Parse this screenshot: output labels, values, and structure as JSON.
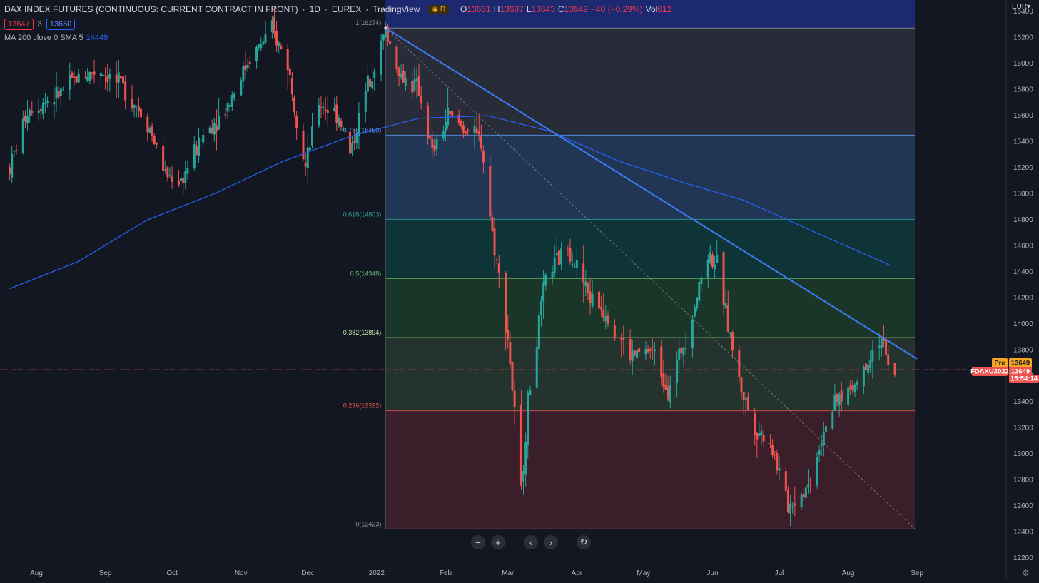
{
  "header": {
    "symbol_title": "DAX INDEX FUTURES (CONTINUOUS: CURRENT CONTRACT IN FRONT)",
    "interval": "1D",
    "exchange": "EUREX",
    "source": "TradingView",
    "session_badge": "D",
    "open_label": "O",
    "open": "13661",
    "high_label": "H",
    "high": "13687",
    "low_label": "L",
    "low": "13643",
    "close_label": "C",
    "close": "13649",
    "change": "−40 (−0.29%)",
    "vol_label": "Vol",
    "vol": "612",
    "sell_price": "13647",
    "spread": "3",
    "buy_price": "13650",
    "ma_label": "MA 200 close 0 SMA 5",
    "ma_value": "14449"
  },
  "currency": "EUR",
  "controls": {
    "zoom_out": "−",
    "zoom_in": "+",
    "scroll_left": "‹",
    "scroll_right": "›",
    "reset": "↻"
  },
  "price_tags": {
    "pre_label": "Pre",
    "pre_price": "13649",
    "symbol_code": "FDAXU2022",
    "last_price": "13649",
    "countdown": "15:54:14"
  },
  "colors": {
    "background": "#131722",
    "up": "#26a69a",
    "down": "#ef5350",
    "ma": "#2962ff",
    "trendline": "#3d7cf5"
  },
  "chart_data": {
    "type": "candlestick",
    "y_axis": {
      "ticks": [
        12200,
        12400,
        12600,
        12800,
        13000,
        13200,
        13400,
        13600,
        13800,
        14000,
        14200,
        14400,
        14600,
        14800,
        15000,
        15200,
        15400,
        15600,
        15800,
        16000,
        16200,
        16400
      ],
      "range": [
        12200,
        16450
      ]
    },
    "x_axis": {
      "labels": [
        "Aug",
        "Sep",
        "Oct",
        "Nov",
        "Dec",
        "2022",
        "Feb",
        "Mar",
        "Apr",
        "May",
        "Jun",
        "Jul",
        "Aug",
        "Sep"
      ],
      "dates": [
        "2021-08-01",
        "2021-09-01",
        "2021-10-01",
        "2021-11-01",
        "2021-12-01",
        "2022-01-01",
        "2022-02-01",
        "2022-03-01",
        "2022-04-01",
        "2022-05-01",
        "2022-06-01",
        "2022-07-01",
        "2022-08-01",
        "2022-09-01"
      ]
    },
    "fibonacci": [
      {
        "level": "1",
        "price": 16274,
        "label": "1(16274)",
        "label_color": "#9598a1",
        "fill": "#2a2f3b"
      },
      {
        "level": "0.786",
        "price": 15450,
        "label": "0.786(15450)",
        "label_color": "#5b9cf6",
        "fill": "#243a5a"
      },
      {
        "level": "0.618",
        "price": 14803,
        "label": "0.618(14803)",
        "label_color": "#26a69a",
        "fill": "#10373a"
      },
      {
        "level": "0.5",
        "price": 14348,
        "label": "0.5(14348)",
        "label_color": "#66bb6a",
        "fill": "#1c3a2a"
      },
      {
        "level": "0.382",
        "price": 13894,
        "label": "0.382(13894)",
        "label_color": "#c0e5a0",
        "fill": "#27362f"
      },
      {
        "level": "0.236",
        "price": 13332,
        "label": "0.236(13332)",
        "label_color": "#ef5350",
        "fill": "#3f1f2a"
      },
      {
        "level": "0",
        "price": 12423,
        "label": "0(12423)",
        "label_color": "#9598a1",
        "fill": null
      }
    ],
    "fib_range": {
      "start": "2022-01-05",
      "end": "2022-08-31"
    },
    "trendline": {
      "from": {
        "date": "2022-01-05",
        "price": 16274
      },
      "to": {
        "date": "2022-09-01",
        "price": 13730
      }
    },
    "fib_diagonal": {
      "from": {
        "date": "2022-01-05",
        "price": 16274
      },
      "to": {
        "date": "2022-08-31",
        "price": 12423
      }
    },
    "ma200": [
      {
        "date": "2021-07-20",
        "value": 14270
      },
      {
        "date": "2021-08-20",
        "value": 14480
      },
      {
        "date": "2021-09-20",
        "value": 14800
      },
      {
        "date": "2021-10-20",
        "value": 15000
      },
      {
        "date": "2021-11-20",
        "value": 15250
      },
      {
        "date": "2021-12-20",
        "value": 15440
      },
      {
        "date": "2022-01-20",
        "value": 15580
      },
      {
        "date": "2022-02-20",
        "value": 15600
      },
      {
        "date": "2022-03-20",
        "value": 15480
      },
      {
        "date": "2022-04-20",
        "value": 15250
      },
      {
        "date": "2022-05-20",
        "value": 15080
      },
      {
        "date": "2022-06-15",
        "value": 14950
      },
      {
        "date": "2022-07-15",
        "value": 14720
      },
      {
        "date": "2022-08-20",
        "value": 14449
      }
    ],
    "price_path": [
      {
        "date": "2021-07-20",
        "price": 15200
      },
      {
        "date": "2021-07-28",
        "price": 15650
      },
      {
        "date": "2021-08-10",
        "price": 15750
      },
      {
        "date": "2021-08-20",
        "price": 15900
      },
      {
        "date": "2021-08-30",
        "price": 15950
      },
      {
        "date": "2021-09-10",
        "price": 15800
      },
      {
        "date": "2021-09-20",
        "price": 15550
      },
      {
        "date": "2021-09-28",
        "price": 15150
      },
      {
        "date": "2021-10-05",
        "price": 15100
      },
      {
        "date": "2021-10-15",
        "price": 15450
      },
      {
        "date": "2021-10-25",
        "price": 15650
      },
      {
        "date": "2021-11-05",
        "price": 16050
      },
      {
        "date": "2021-11-15",
        "price": 16250
      },
      {
        "date": "2021-11-22",
        "price": 16000
      },
      {
        "date": "2021-11-30",
        "price": 15200
      },
      {
        "date": "2021-12-06",
        "price": 15700
      },
      {
        "date": "2021-12-15",
        "price": 15600
      },
      {
        "date": "2021-12-20",
        "price": 15300
      },
      {
        "date": "2021-12-28",
        "price": 15850
      },
      {
        "date": "2022-01-05",
        "price": 16250
      },
      {
        "date": "2022-01-12",
        "price": 15900
      },
      {
        "date": "2022-01-20",
        "price": 15800
      },
      {
        "date": "2022-01-26",
        "price": 15300
      },
      {
        "date": "2022-02-02",
        "price": 15600
      },
      {
        "date": "2022-02-10",
        "price": 15500
      },
      {
        "date": "2022-02-17",
        "price": 15400
      },
      {
        "date": "2022-02-22",
        "price": 14700
      },
      {
        "date": "2022-03-01",
        "price": 13900
      },
      {
        "date": "2022-03-07",
        "price": 12700
      },
      {
        "date": "2022-03-10",
        "price": 13400
      },
      {
        "date": "2022-03-18",
        "price": 14350
      },
      {
        "date": "2022-03-28",
        "price": 14600
      },
      {
        "date": "2022-04-07",
        "price": 14200
      },
      {
        "date": "2022-04-14",
        "price": 14100
      },
      {
        "date": "2022-04-25",
        "price": 13750
      },
      {
        "date": "2022-05-05",
        "price": 13800
      },
      {
        "date": "2022-05-12",
        "price": 13500
      },
      {
        "date": "2022-05-20",
        "price": 13900
      },
      {
        "date": "2022-05-30",
        "price": 14550
      },
      {
        "date": "2022-06-03",
        "price": 14450
      },
      {
        "date": "2022-06-13",
        "price": 13550
      },
      {
        "date": "2022-06-20",
        "price": 13200
      },
      {
        "date": "2022-06-27",
        "price": 13100
      },
      {
        "date": "2022-07-05",
        "price": 12600
      },
      {
        "date": "2022-07-14",
        "price": 12750
      },
      {
        "date": "2022-07-22",
        "price": 13250
      },
      {
        "date": "2022-07-29",
        "price": 13450
      },
      {
        "date": "2022-08-05",
        "price": 13550
      },
      {
        "date": "2022-08-12",
        "price": 13800
      },
      {
        "date": "2022-08-16",
        "price": 13900
      },
      {
        "date": "2022-08-19",
        "price": 13650
      },
      {
        "date": "2022-08-22",
        "price": 13649
      }
    ],
    "last_price": 13649
  }
}
